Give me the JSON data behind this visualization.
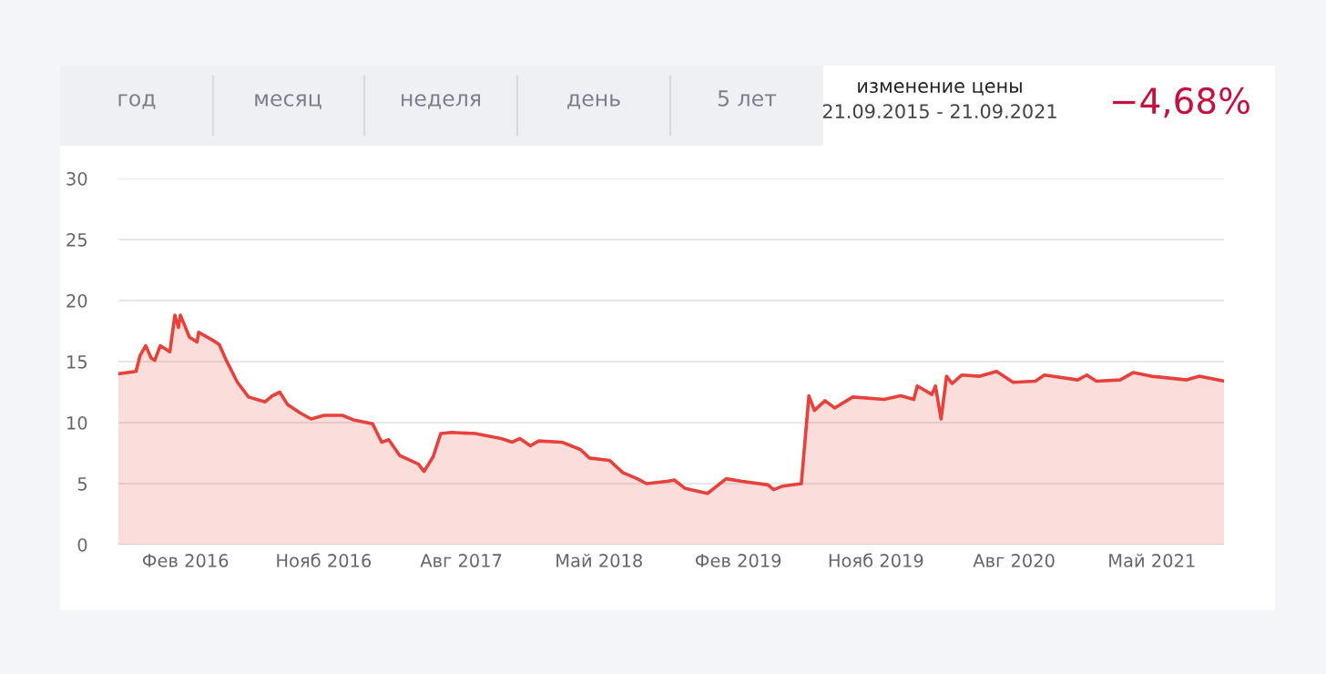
{
  "chart_data": {
    "type": "area",
    "annotations": [
      "год",
      "месяц",
      "неделя",
      "день",
      "5 лет",
      "изменение цены",
      "21.09.2015 - 21.09.2021",
      "−4,68%"
    ],
    "x": [
      "2015-09-21",
      "2015-10-26",
      "2015-11-03",
      "2015-11-14",
      "2015-11-25",
      "2015-12-02",
      "2015-12-13",
      "2016-01-01",
      "2016-01-11",
      "2016-01-18",
      "2016-01-22",
      "2016-02-09",
      "2016-02-24",
      "2016-02-27",
      "2016-03-24",
      "2016-04-08",
      "2016-04-22",
      "2016-05-14",
      "2016-06-05",
      "2016-07-08",
      "2016-07-22",
      "2016-08-06",
      "2016-08-21",
      "2016-09-15",
      "2016-10-07",
      "2016-11-02",
      "2016-12-08",
      "2017-01-01",
      "2017-02-06",
      "2017-02-24",
      "2017-03-10",
      "2017-04-01",
      "2017-05-08",
      "2017-05-19",
      "2017-06-06",
      "2017-06-21",
      "2017-07-12",
      "2017-08-29",
      "2017-10-19",
      "2017-11-10",
      "2017-11-25",
      "2017-12-16",
      "2018-01-01",
      "2018-02-16",
      "2018-03-25",
      "2018-04-12",
      "2018-05-22",
      "2018-06-17",
      "2018-07-16",
      "2018-08-03",
      "2018-09-16",
      "2018-09-27",
      "2018-10-19",
      "2018-12-02",
      "2019-01-08",
      "2019-02-06",
      "2019-04-01",
      "2019-04-12",
      "2019-04-30",
      "2019-06-06",
      "2019-06-21",
      "2019-07-02",
      "2019-07-23",
      "2019-08-11",
      "2019-09-16",
      "2019-11-17",
      "2019-12-20",
      "2020-01-15",
      "2020-01-22",
      "2020-02-20",
      "2020-02-27",
      "2020-03-09",
      "2020-03-20",
      "2020-03-31",
      "2020-04-19",
      "2020-05-25",
      "2020-06-27",
      "2020-07-30",
      "2020-09-12",
      "2020-09-30",
      "2020-12-05",
      "2020-12-23",
      "2021-01-11",
      "2021-02-27",
      "2021-03-25",
      "2021-04-30",
      "2021-07-09",
      "2021-08-03",
      "2021-09-21"
    ],
    "series": [
      {
        "color": "#e8403a",
        "values": [
          14.0,
          14.2,
          15.5,
          16.3,
          15.3,
          15.1,
          16.3,
          15.8,
          18.8,
          17.8,
          18.8,
          17.0,
          16.6,
          17.4,
          16.8,
          16.4,
          15.1,
          13.3,
          12.1,
          11.7,
          12.2,
          12.5,
          11.5,
          10.8,
          10.3,
          10.6,
          10.6,
          10.2,
          9.9,
          8.4,
          8.6,
          7.3,
          6.6,
          6.0,
          7.2,
          9.1,
          9.2,
          9.1,
          8.7,
          8.4,
          8.7,
          8.1,
          8.5,
          8.4,
          7.8,
          7.1,
          6.9,
          5.9,
          5.4,
          5.0,
          5.2,
          5.3,
          4.6,
          4.2,
          5.4,
          5.2,
          4.9,
          4.5,
          4.8,
          5.0,
          12.2,
          11.0,
          11.8,
          11.2,
          12.1,
          11.9,
          12.2,
          11.9,
          13.0,
          12.3,
          13.0,
          10.3,
          13.8,
          13.2,
          13.9,
          13.8,
          14.2,
          13.3,
          13.4,
          13.9,
          13.5,
          13.9,
          13.4,
          13.5,
          14.1,
          13.8,
          13.5,
          13.8,
          13.4
        ]
      }
    ],
    "xlim": [
      "2015-09-21",
      "2021-09-21"
    ],
    "xticks": [
      {
        "value": "2016-02-01",
        "label": "Фев 2016"
      },
      {
        "value": "2016-11-01",
        "label": "Нояб 2016"
      },
      {
        "value": "2017-08-01",
        "label": "Авг 2017"
      },
      {
        "value": "2018-05-01",
        "label": "Май 2018"
      },
      {
        "value": "2019-02-01",
        "label": "Фев 2019"
      },
      {
        "value": "2019-11-01",
        "label": "Нояб 2019"
      },
      {
        "value": "2020-08-01",
        "label": "Авг 2020"
      },
      {
        "value": "2021-05-01",
        "label": "Май 2021"
      }
    ],
    "ylim": [
      0,
      30
    ],
    "yticks": [
      0,
      5,
      10,
      15,
      20,
      25,
      30
    ],
    "grid": "y"
  }
}
